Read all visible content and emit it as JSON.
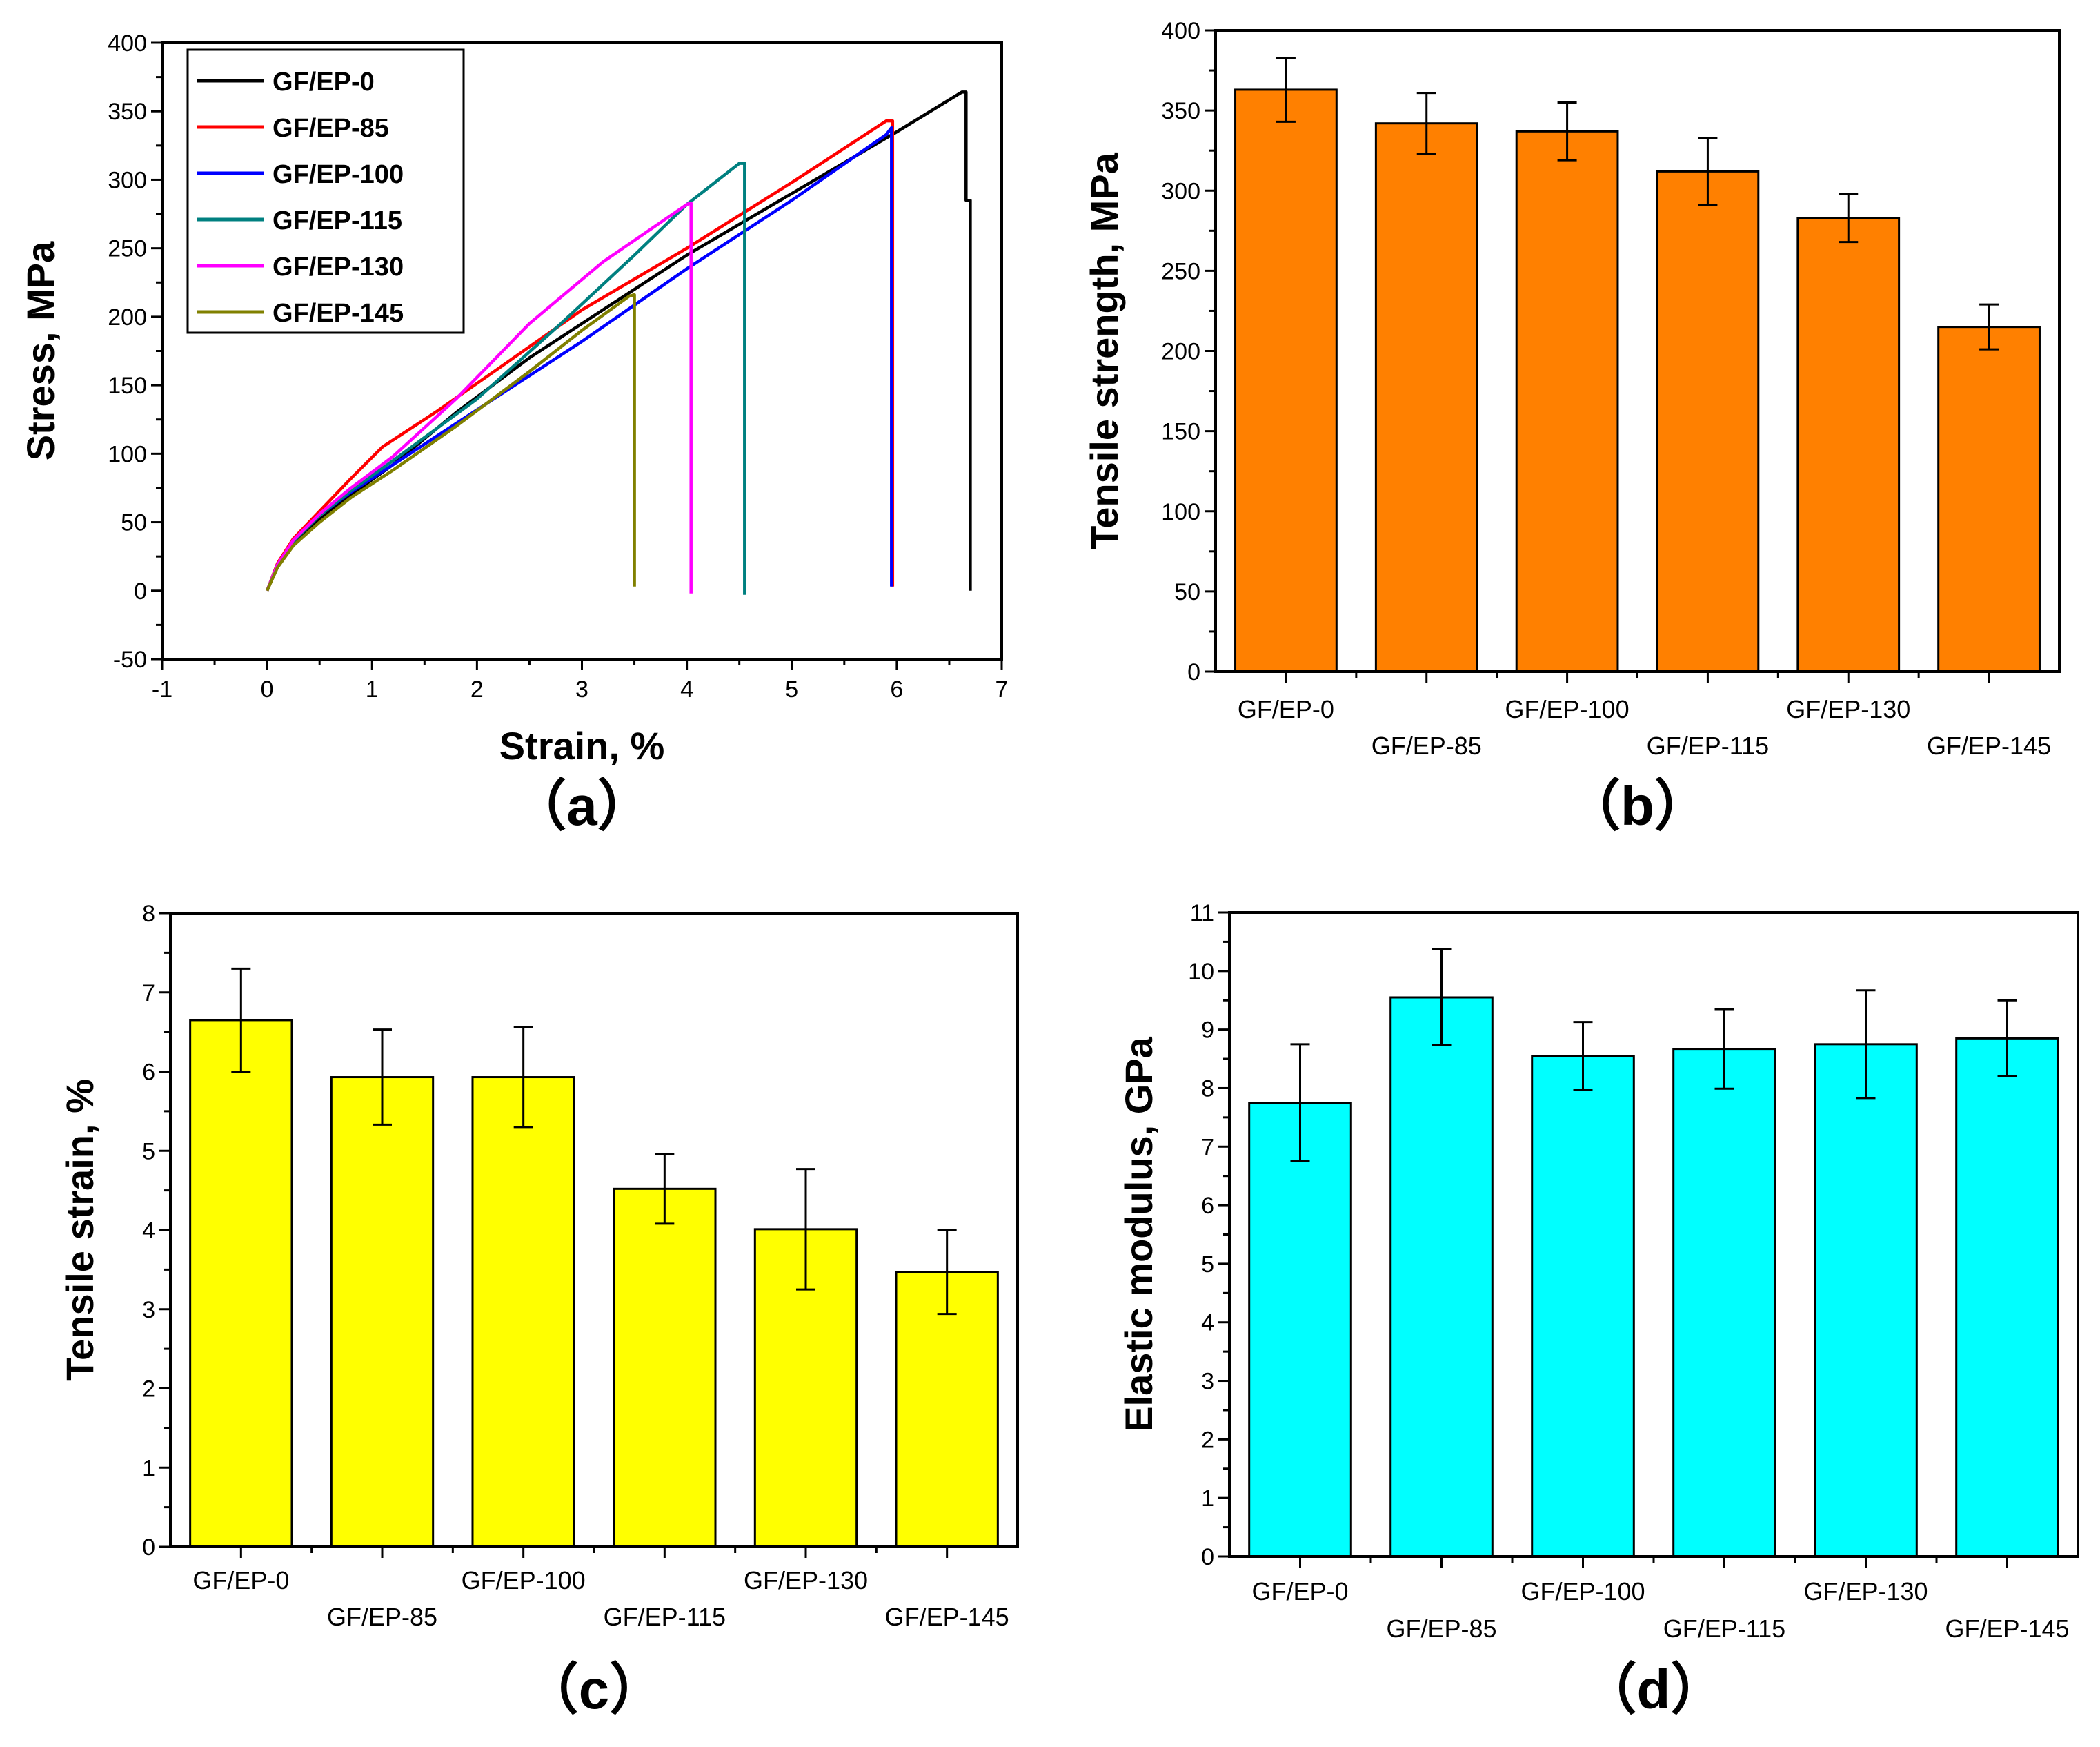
{
  "chart_data": [
    {
      "type": "line",
      "panel": "a",
      "panel_label": "（a）",
      "xlabel": "Strain, %",
      "ylabel": "Stress, MPa",
      "xlim": [
        -1,
        7
      ],
      "ylim": [
        -50,
        400
      ],
      "xticks": [
        -1,
        0,
        1,
        2,
        3,
        4,
        5,
        6,
        7
      ],
      "yticks": [
        -50,
        0,
        50,
        100,
        150,
        200,
        250,
        300,
        350,
        400
      ],
      "legend": "top-left",
      "series": [
        {
          "name": "GF/EP-0",
          "color": "#000000",
          "points": [
            [
              0,
              0
            ],
            [
              0.1,
              18
            ],
            [
              0.25,
              35
            ],
            [
              0.5,
              52
            ],
            [
              0.8,
              70
            ],
            [
              1.2,
              92
            ],
            [
              1.8,
              130
            ],
            [
              2.5,
              170
            ],
            [
              3.2,
              205
            ],
            [
              4.0,
              245
            ],
            [
              5.0,
              290
            ],
            [
              6.0,
              335
            ],
            [
              6.62,
              364
            ],
            [
              6.66,
              364
            ],
            [
              6.66,
              285
            ],
            [
              6.7,
              285
            ],
            [
              6.7,
              0
            ]
          ]
        },
        {
          "name": "GF/EP-85",
          "color": "#ff0000",
          "points": [
            [
              0,
              0
            ],
            [
              0.1,
              20
            ],
            [
              0.25,
              38
            ],
            [
              0.5,
              58
            ],
            [
              0.8,
              82
            ],
            [
              1.1,
              105
            ],
            [
              1.6,
              130
            ],
            [
              2.2,
              162
            ],
            [
              3.0,
              205
            ],
            [
              4.0,
              250
            ],
            [
              5.0,
              298
            ],
            [
              5.9,
              343
            ],
            [
              5.96,
              343
            ],
            [
              5.96,
              3
            ]
          ]
        },
        {
          "name": "GF/EP-100",
          "color": "#0000ff",
          "points": [
            [
              0,
              0
            ],
            [
              0.1,
              19
            ],
            [
              0.25,
              36
            ],
            [
              0.5,
              55
            ],
            [
              0.8,
              72
            ],
            [
              1.2,
              92
            ],
            [
              2.0,
              132
            ],
            [
              3.0,
              182
            ],
            [
              4.0,
              235
            ],
            [
              5.0,
              285
            ],
            [
              5.9,
              333
            ],
            [
              5.95,
              338
            ],
            [
              5.95,
              3
            ]
          ]
        },
        {
          "name": "GF/EP-115",
          "color": "#008080",
          "points": [
            [
              0,
              0
            ],
            [
              0.1,
              19
            ],
            [
              0.25,
              36
            ],
            [
              0.5,
              55
            ],
            [
              0.8,
              73
            ],
            [
              1.2,
              95
            ],
            [
              2.0,
              140
            ],
            [
              2.8,
              195
            ],
            [
              3.5,
              245
            ],
            [
              4.0,
              282
            ],
            [
              4.5,
              312
            ],
            [
              4.55,
              312
            ],
            [
              4.55,
              -3
            ]
          ]
        },
        {
          "name": "GF/EP-130",
          "color": "#ff00ff",
          "points": [
            [
              0,
              0
            ],
            [
              0.1,
              19
            ],
            [
              0.25,
              37
            ],
            [
              0.5,
              56
            ],
            [
              0.8,
              75
            ],
            [
              1.2,
              98
            ],
            [
              1.8,
              140
            ],
            [
              2.5,
              195
            ],
            [
              3.2,
              240
            ],
            [
              4.0,
              282
            ],
            [
              4.04,
              283
            ],
            [
              4.04,
              -2
            ]
          ]
        },
        {
          "name": "GF/EP-145",
          "color": "#808000",
          "points": [
            [
              0,
              0
            ],
            [
              0.1,
              17
            ],
            [
              0.25,
              33
            ],
            [
              0.5,
              50
            ],
            [
              0.8,
              68
            ],
            [
              1.2,
              88
            ],
            [
              1.8,
              120
            ],
            [
              2.5,
              160
            ],
            [
              3.0,
              190
            ],
            [
              3.45,
              215
            ],
            [
              3.5,
              216
            ],
            [
              3.5,
              3
            ]
          ]
        }
      ]
    },
    {
      "type": "bar",
      "panel": "b",
      "panel_label": "（b）",
      "ylabel": "Tensile strength, MPa",
      "categories": [
        "GF/EP-0",
        "GF/EP-85",
        "GF/EP-100",
        "GF/EP-115",
        "GF/EP-130",
        "GF/EP-145"
      ],
      "values": [
        363,
        342,
        337,
        312,
        283,
        215
      ],
      "errors": [
        20,
        19,
        18,
        21,
        15,
        14
      ],
      "color": "#ff8000",
      "ylim": [
        0,
        400
      ],
      "yticks": [
        0,
        50,
        100,
        150,
        200,
        250,
        300,
        350,
        400
      ]
    },
    {
      "type": "bar",
      "panel": "c",
      "panel_label": "（c）",
      "ylabel": "Tensile strain, %",
      "categories": [
        "GF/EP-0",
        "GF/EP-85",
        "GF/EP-100",
        "GF/EP-115",
        "GF/EP-130",
        "GF/EP-145"
      ],
      "values": [
        6.65,
        5.93,
        5.93,
        4.52,
        4.01,
        3.47
      ],
      "errors": [
        0.65,
        0.6,
        0.63,
        0.44,
        0.76,
        0.53
      ],
      "color": "#ffff00",
      "ylim": [
        0,
        8
      ],
      "yticks": [
        0,
        1,
        2,
        3,
        4,
        5,
        6,
        7,
        8
      ]
    },
    {
      "type": "bar",
      "panel": "d",
      "panel_label": "（d）",
      "ylabel": "Elastic modulus, GPa",
      "categories": [
        "GF/EP-0",
        "GF/EP-85",
        "GF/EP-100",
        "GF/EP-115",
        "GF/EP-130",
        "GF/EP-145"
      ],
      "values": [
        7.75,
        9.55,
        8.55,
        8.67,
        8.75,
        8.85
      ],
      "errors": [
        1.0,
        0.82,
        0.58,
        0.68,
        0.92,
        0.65
      ],
      "color": "#00ffff",
      "ylim": [
        0,
        11
      ],
      "yticks": [
        0,
        1,
        2,
        3,
        4,
        5,
        6,
        7,
        8,
        9,
        10,
        11
      ]
    }
  ]
}
